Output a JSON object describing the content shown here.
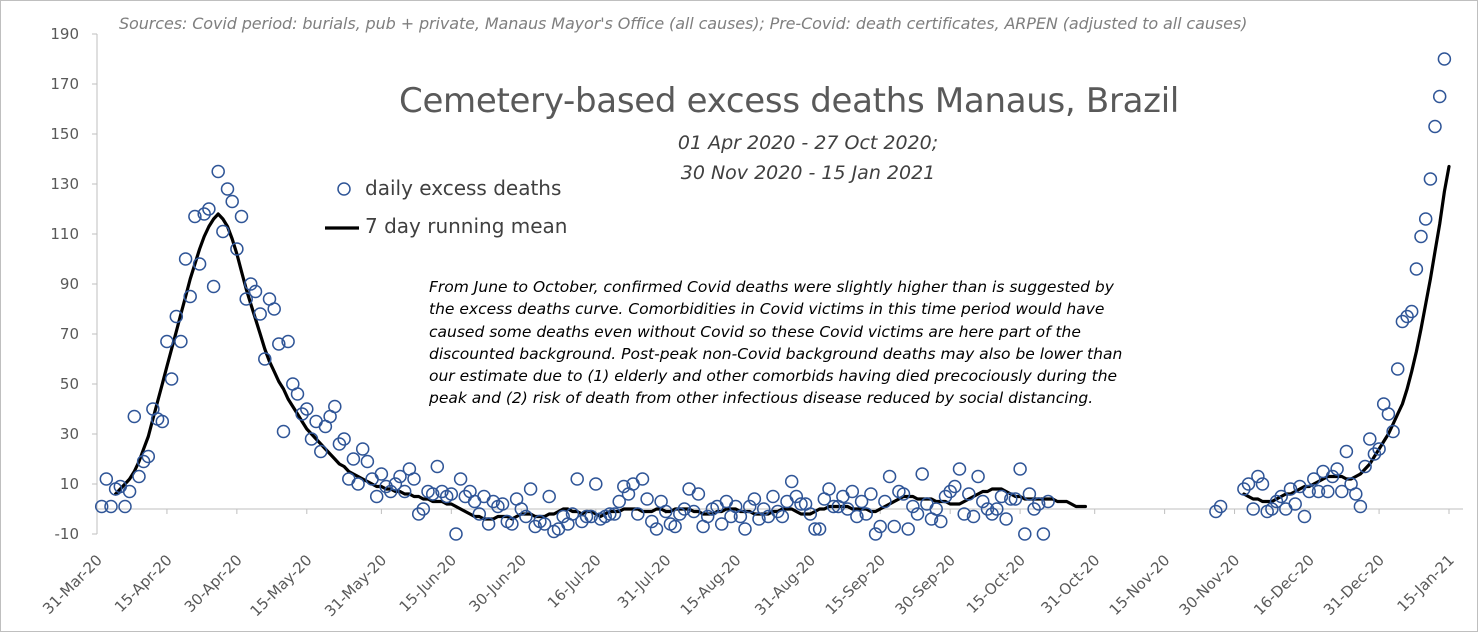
{
  "chart_data": {
    "type": "scatter",
    "title": "Cemetery-based excess deaths Manaus, Brazil",
    "subtitle_lines": [
      "01 Apr 2020 - 27 Oct 2020;",
      "30 Nov 2020 - 15 Jan 2021"
    ],
    "source_note": "Sources: Covid period: burials, pub + private, Manaus Mayor's Office (all causes);  Pre-Covid: death certificates, ARPEN (adjusted to all causes)",
    "annotation_lines": [
      "From June to October, confirmed Covid deaths were slightly higher than is suggested by",
      "the excess deaths curve. Comorbidities in Covid victims in this time period would have",
      "caused some deaths even without Covid so these Covid victims are here part of the",
      "discounted background. Post-peak non-Covid background deaths may also be lower than",
      "our estimate due to (1) elderly and  other comorbids having died precociously during the",
      "peak and (2) risk of death from other infectious disease reduced by social distancing."
    ],
    "xlabel": "",
    "ylabel": "",
    "ylim": [
      -10,
      190
    ],
    "y_ticks": [
      -10,
      10,
      30,
      50,
      70,
      90,
      110,
      130,
      150,
      170,
      190
    ],
    "x_range": [
      "2020-03-31",
      "2021-01-18"
    ],
    "x_tick_labels": [
      "31-Mar-20",
      "15-Apr-20",
      "30-Apr-20",
      "15-May-20",
      "31-May-20",
      "15-Jun-20",
      "30-Jun-20",
      "16-Jul-20",
      "31-Jul-20",
      "15-Aug-20",
      "31-Aug-20",
      "15-Sep-20",
      "30-Sep-20",
      "15-Oct-20",
      "31-Oct-20",
      "15-Nov-20",
      "30-Nov-20",
      "16-Dec-20",
      "31-Dec-20",
      "15-Jan-21"
    ],
    "x_tick_dates": [
      "2020-03-31",
      "2020-04-15",
      "2020-04-30",
      "2020-05-15",
      "2020-05-31",
      "2020-06-15",
      "2020-06-30",
      "2020-07-16",
      "2020-07-31",
      "2020-08-15",
      "2020-08-31",
      "2020-09-15",
      "2020-09-30",
      "2020-10-15",
      "2020-10-31",
      "2020-11-15",
      "2020-11-30",
      "2020-12-16",
      "2020-12-31",
      "2021-01-15"
    ],
    "grid": false,
    "legend": "upper-left, inside plot",
    "series": [
      {
        "name": "daily excess deaths",
        "type": "scatter",
        "color": "#2f5597",
        "segments": [
          {
            "start": "2020-04-01",
            "values": [
              1,
              12,
              1,
              8,
              9,
              1,
              7,
              37,
              13,
              19,
              21,
              40,
              36,
              35,
              67,
              52,
              77,
              67,
              100,
              85,
              117,
              98,
              118,
              120,
              89,
              135,
              111,
              128,
              123,
              104,
              117,
              84,
              90,
              87,
              78,
              60,
              84,
              80,
              66,
              31,
              67,
              50,
              46,
              38,
              40,
              28,
              35,
              23,
              33,
              37,
              41,
              26,
              28,
              12,
              20,
              10,
              24,
              19,
              12,
              5,
              14,
              9,
              7,
              10,
              13,
              7,
              16,
              12,
              -2,
              0,
              7,
              6,
              17,
              7,
              5,
              6,
              -10,
              12,
              5,
              7,
              3,
              -2,
              5,
              -6,
              3,
              1,
              2,
              -5,
              -6,
              4,
              0,
              -3,
              8,
              -7,
              -5,
              -6,
              5,
              -9,
              -8,
              -3,
              -6,
              -2,
              12,
              -5,
              -3,
              -3,
              10,
              -4,
              -3,
              -2,
              -2,
              3,
              9,
              6,
              10,
              -2,
              12,
              4,
              -5,
              -8,
              3,
              -1,
              -6,
              -7,
              -2,
              0,
              8,
              -1,
              6,
              -7,
              -3,
              0,
              1,
              -6,
              3,
              -3,
              1,
              -3,
              -8,
              1,
              4,
              -4,
              0,
              -3,
              5,
              -1,
              -3,
              3,
              11,
              5,
              2,
              2,
              -2,
              -8,
              -8,
              4,
              8,
              1,
              1,
              5,
              0,
              7,
              -3,
              3,
              -2,
              6,
              -10,
              -7,
              3,
              13,
              -7,
              7,
              6,
              -8,
              1,
              -2,
              14,
              2,
              -4,
              0,
              -5,
              5,
              7,
              9,
              16,
              -2,
              6,
              -3,
              13,
              3,
              0,
              -2,
              0,
              5,
              -4,
              4,
              4,
              16,
              -10,
              6,
              0,
              2,
              -10,
              3
            ]
          },
          {
            "start": "2020-11-26",
            "values": [
              -1,
              1,
              null,
              null,
              null,
              null,
              8,
              10,
              0,
              13,
              10,
              -1,
              0,
              3,
              5,
              0,
              8,
              2,
              9,
              -3,
              7,
              12,
              7,
              15,
              7,
              13,
              16,
              7,
              23,
              10,
              6,
              1,
              17,
              28,
              22,
              24,
              42,
              38,
              31,
              56,
              75,
              77,
              79,
              96,
              109,
              116,
              132,
              153,
              165,
              180
            ]
          }
        ]
      },
      {
        "name": "7 day running mean",
        "type": "line",
        "color": "#000000",
        "segments": [
          {
            "start": "2020-04-04",
            "values": [
              6,
              8,
              10,
              12,
              15,
              19,
              24,
              29,
              36,
              43,
              50,
              57,
              64,
              71,
              78,
              85,
              92,
              98,
              104,
              109,
              113,
              116,
              118,
              116,
              113,
              108,
              102,
              95,
              88,
              82,
              76,
              70,
              64,
              59,
              55,
              51,
              48,
              44,
              41,
              38,
              35,
              32,
              30,
              28,
              26,
              24,
              22,
              20,
              18,
              17,
              15,
              14,
              13,
              12,
              11,
              10,
              9,
              9,
              8,
              8,
              7,
              7,
              6,
              6,
              5,
              5,
              4,
              4,
              3,
              3,
              3,
              2,
              2,
              1,
              0,
              -1,
              -2,
              -3,
              -3,
              -4,
              -4,
              -4,
              -3,
              -3,
              -3,
              -4,
              -3,
              -2,
              -2,
              -2,
              -3,
              -3,
              -3,
              -2,
              -2,
              -1,
              0,
              0,
              -1,
              -1,
              -2,
              -1,
              -1,
              -2,
              -3,
              -2,
              -1,
              -1,
              -1,
              0,
              0,
              0,
              0,
              -1,
              -1,
              -1,
              0,
              0,
              -1,
              -1,
              0,
              0,
              0,
              0,
              -1,
              -1,
              -2,
              -2,
              -2,
              -1,
              -1,
              0,
              0,
              0,
              -1,
              -1,
              -1,
              -2,
              -2,
              -2,
              -2,
              -1,
              -1,
              0,
              0,
              0,
              -1,
              -2,
              -2,
              -2,
              -1,
              0,
              0,
              1,
              1,
              1,
              1,
              1,
              0,
              0,
              0,
              0,
              -1,
              -1,
              0,
              1,
              2,
              3,
              4,
              5,
              5,
              5,
              4,
              4,
              4,
              4,
              3,
              3,
              3,
              2,
              2,
              2,
              3,
              4,
              5,
              6,
              7,
              7,
              8,
              8,
              8,
              7,
              6,
              5,
              5,
              4,
              4,
              4,
              4,
              4,
              4,
              4,
              3,
              3,
              3,
              2,
              1,
              1,
              1
            ]
          },
          {
            "start": "2020-12-02",
            "values": [
              6,
              5,
              4,
              4,
              3,
              3,
              3,
              4,
              5,
              6,
              6,
              7,
              8,
              9,
              9,
              10,
              11,
              12,
              13,
              13,
              13,
              13,
              12,
              12,
              13,
              14,
              16,
              18,
              21,
              24,
              27,
              30,
              34,
              38,
              42,
              48,
              55,
              63,
              72,
              82,
              92,
              103,
              114,
              127,
              137
            ]
          }
        ]
      }
    ]
  },
  "legend": {
    "items": [
      {
        "label": "daily excess deaths",
        "marker": "circle"
      },
      {
        "label": "7 day running mean",
        "marker": "line"
      }
    ]
  }
}
